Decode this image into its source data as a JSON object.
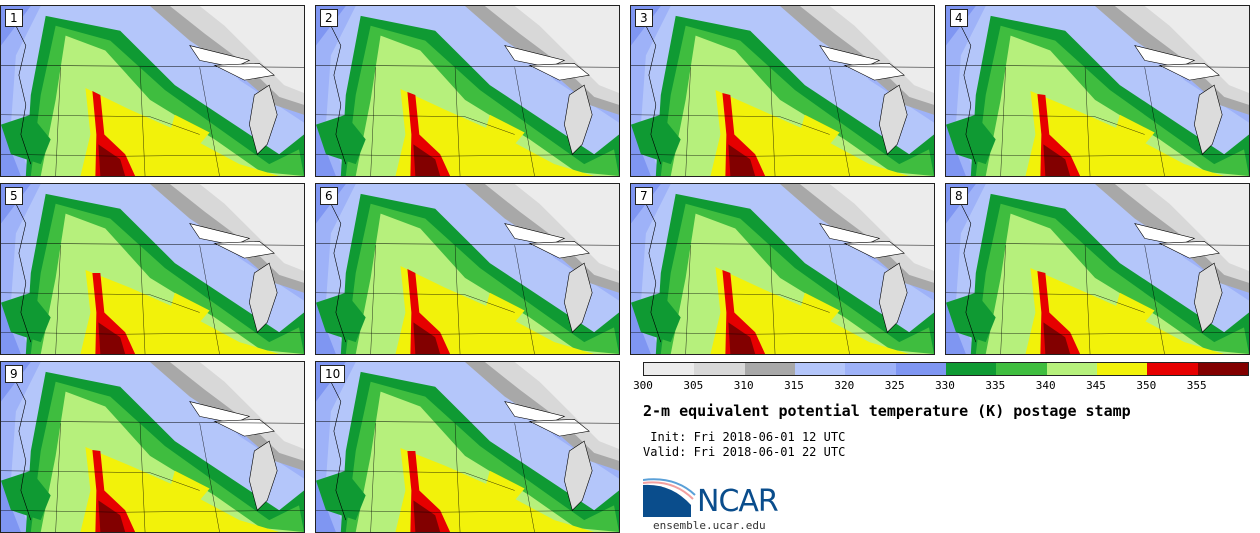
{
  "panels": [
    {
      "label": "1"
    },
    {
      "label": "2"
    },
    {
      "label": "3"
    },
    {
      "label": "4"
    },
    {
      "label": "5"
    },
    {
      "label": "6"
    },
    {
      "label": "7"
    },
    {
      "label": "8"
    },
    {
      "label": "9"
    },
    {
      "label": "10"
    }
  ],
  "colorbar": {
    "colors": [
      "#ececec",
      "#d8d8d8",
      "#a8a8a8",
      "#b4c6fa",
      "#9eb2f8",
      "#7f96f2",
      "#0f9a33",
      "#3fbd3f",
      "#b6f07c",
      "#f2f20a",
      "#e60000",
      "#820000"
    ],
    "tick_labels": [
      "300",
      "305",
      "310",
      "315",
      "320",
      "325",
      "330",
      "335",
      "340",
      "345",
      "350",
      "355"
    ]
  },
  "title": "2-m equivalent potential temperature (K) postage stamp",
  "init": " Init: Fri 2018-06-01 12 UTC",
  "valid": "Valid: Fri 2018-06-01 22 UTC",
  "logo": {
    "text": "NCAR",
    "url": "ensemble.ucar.edu"
  }
}
